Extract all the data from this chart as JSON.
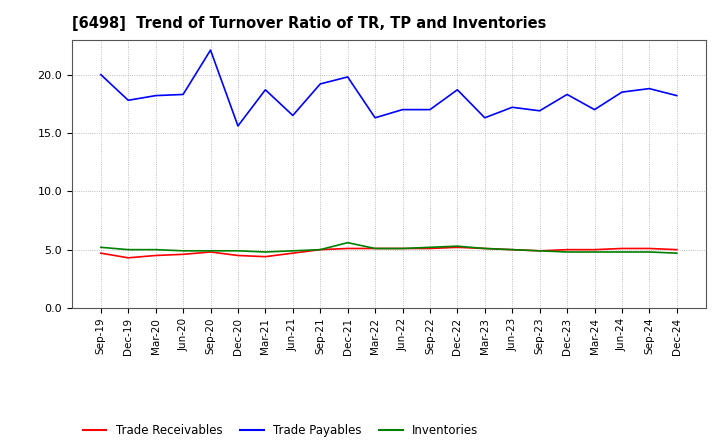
{
  "title": "[6498]  Trend of Turnover Ratio of TR, TP and Inventories",
  "x_labels": [
    "Sep-19",
    "Dec-19",
    "Mar-20",
    "Jun-20",
    "Sep-20",
    "Dec-20",
    "Mar-21",
    "Jun-21",
    "Sep-21",
    "Dec-21",
    "Mar-22",
    "Jun-22",
    "Sep-22",
    "Dec-22",
    "Mar-23",
    "Jun-23",
    "Sep-23",
    "Dec-23",
    "Mar-24",
    "Jun-24",
    "Sep-24",
    "Dec-24"
  ],
  "trade_payables": [
    20.0,
    17.8,
    18.2,
    18.3,
    22.1,
    15.6,
    18.7,
    16.5,
    19.2,
    19.8,
    16.3,
    17.0,
    17.0,
    18.7,
    16.3,
    17.2,
    16.9,
    18.3,
    17.0,
    18.5,
    18.8,
    18.2
  ],
  "trade_receivables": [
    4.7,
    4.3,
    4.5,
    4.6,
    4.8,
    4.5,
    4.4,
    4.7,
    5.0,
    5.1,
    5.1,
    5.1,
    5.1,
    5.2,
    5.1,
    5.0,
    4.9,
    5.0,
    5.0,
    5.1,
    5.1,
    5.0
  ],
  "inventories": [
    5.2,
    5.0,
    5.0,
    4.9,
    4.9,
    4.9,
    4.8,
    4.9,
    5.0,
    5.6,
    5.1,
    5.1,
    5.2,
    5.3,
    5.1,
    5.0,
    4.9,
    4.8,
    4.8,
    4.8,
    4.8,
    4.7
  ],
  "ylim": [
    0.0,
    23.0
  ],
  "yticks": [
    0.0,
    5.0,
    10.0,
    15.0,
    20.0
  ],
  "color_tp": "#0000FF",
  "color_tr": "#FF0000",
  "color_inv": "#008000",
  "legend_labels": [
    "Trade Receivables",
    "Trade Payables",
    "Inventories"
  ],
  "background_color": "#FFFFFF",
  "grid_color": "#AAAAAA"
}
